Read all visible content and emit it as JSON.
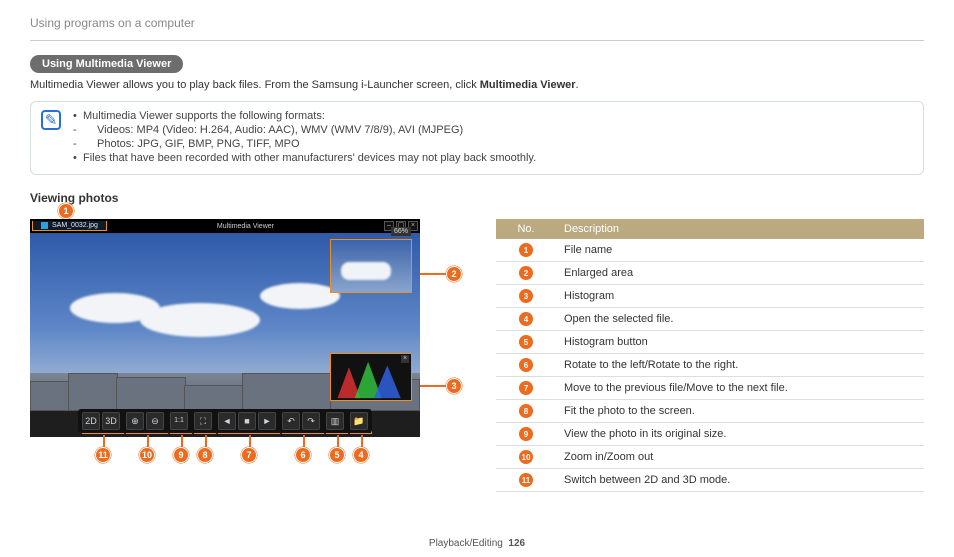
{
  "breadcrumb": "Using programs on a computer",
  "section_title": "Using Multimedia Viewer",
  "intro_pre": "Multimedia Viewer allows you to play back files. From the Samsung i-Launcher screen, click ",
  "intro_bold": "Multimedia Viewer",
  "intro_post": ".",
  "note": {
    "l1": "Multimedia Viewer supports the following formats:",
    "l1a": "Videos: MP4 (Video: H.264, Audio: AAC), WMV (WMV 7/8/9), AVI (MJPEG)",
    "l1b": "Photos: JPG, GIF, BMP, PNG, TIFF, MPO",
    "l2": "Files that have been recorded with other manufacturers' devices may not play back smoothly."
  },
  "subhead": "Viewing photos",
  "viewer": {
    "app_title": "Multimedia Viewer",
    "file_name": "SAM_0032.jpg",
    "zoom_label": "66%"
  },
  "table": {
    "head_no": "No.",
    "head_desc": "Description",
    "rows": [
      {
        "n": "1",
        "d": "File name"
      },
      {
        "n": "2",
        "d": "Enlarged area"
      },
      {
        "n": "3",
        "d": "Histogram"
      },
      {
        "n": "4",
        "d": "Open the selected file."
      },
      {
        "n": "5",
        "d": "Histogram button"
      },
      {
        "n": "6",
        "d": "Rotate to the left/Rotate to the right."
      },
      {
        "n": "7",
        "d": "Move to the previous file/Move to the next file."
      },
      {
        "n": "8",
        "d": "Fit the photo to the screen."
      },
      {
        "n": "9",
        "d": "View the photo in its original size."
      },
      {
        "n": "10",
        "d": "Zoom in/Zoom out"
      },
      {
        "n": "11",
        "d": "Switch between 2D and 3D mode."
      }
    ]
  },
  "callouts": {
    "1": "1",
    "2": "2",
    "3": "3",
    "4": "4",
    "5": "5",
    "6": "6",
    "7": "7",
    "8": "8",
    "9": "9",
    "10": "10",
    "11": "11"
  },
  "footer_section": "Playback/Editing",
  "footer_page": "126"
}
